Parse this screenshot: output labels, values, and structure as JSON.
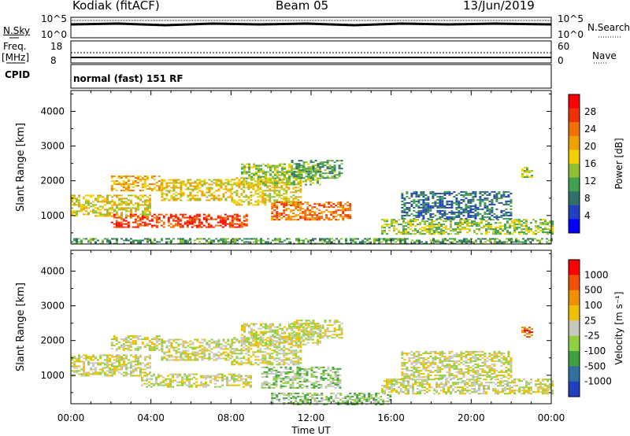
{
  "header": {
    "station": "Kodiak (fitACF)",
    "beam": "Beam 05",
    "date": "13/Jun/2019"
  },
  "status_panels": {
    "nsky": {
      "label": "N.Sky",
      "top_tick": "10^5",
      "bottom_tick": "10^0"
    },
    "nsearch": {
      "label": "N.Search",
      "top_tick": "10^5",
      "bottom_tick": "10^0"
    },
    "freq": {
      "label_top": "Freq.",
      "label_bottom": "[MHz]",
      "top_tick": "18",
      "bottom_tick": "8"
    },
    "nave": {
      "label": "Nave",
      "top_tick": "60",
      "bottom_tick": "0"
    },
    "cpid": {
      "label": "CPID",
      "value": "normal (fast) 151 RF"
    }
  },
  "chart_data": [
    {
      "type": "heatmap",
      "name": "power",
      "ylabel": "Slant Range [km]",
      "ylim": [
        180,
        4600
      ],
      "yticks": [
        "4000",
        "3000",
        "2000",
        "1000"
      ],
      "xlabel": "Time UT",
      "xlim": [
        0,
        24
      ],
      "xticks": [
        "00:00",
        "04:00",
        "08:00",
        "12:00",
        "16:00",
        "20:00",
        "00:00"
      ],
      "colorbar_label": "Power [dB]",
      "colorbar_ticks": [
        "28",
        "24",
        "20",
        "16",
        "12",
        "8",
        "4"
      ],
      "colors": [
        "#0000ff",
        "#2040c0",
        "#30706a",
        "#40a050",
        "#90c030",
        "#f0d000",
        "#f0a000",
        "#f07000",
        "#f03000",
        "#ff0000"
      ],
      "regions": [
        {
          "t0": 2.0,
          "t1": 8.8,
          "r0": 650,
          "r1": 1050,
          "level": 8
        },
        {
          "t0": 0.0,
          "t1": 4.0,
          "r0": 1000,
          "r1": 1600,
          "level": 5
        },
        {
          "t0": 2.0,
          "t1": 4.5,
          "r0": 1700,
          "r1": 2150,
          "level": 6
        },
        {
          "t0": 4.5,
          "t1": 8.0,
          "r0": 1450,
          "r1": 2050,
          "level": 5
        },
        {
          "t0": 8.0,
          "t1": 11.5,
          "r0": 1300,
          "r1": 2100,
          "level": 5
        },
        {
          "t0": 8.5,
          "t1": 12.5,
          "r0": 1900,
          "r1": 2500,
          "level": 4
        },
        {
          "t0": 10.0,
          "t1": 14.0,
          "r0": 900,
          "r1": 1400,
          "level": 7
        },
        {
          "t0": 11.0,
          "t1": 13.5,
          "r0": 2100,
          "r1": 2600,
          "level": 3
        },
        {
          "t0": 15.5,
          "t1": 24.0,
          "r0": 450,
          "r1": 900,
          "level": 4
        },
        {
          "t0": 16.5,
          "t1": 22.0,
          "r0": 900,
          "r1": 1700,
          "level": 2
        },
        {
          "t0": 22.5,
          "t1": 23.0,
          "r0": 2100,
          "r1": 2400,
          "level": 4
        },
        {
          "t0": 0.0,
          "t1": 24.0,
          "r0": 180,
          "r1": 350,
          "level": 3
        }
      ]
    },
    {
      "type": "heatmap",
      "name": "velocity",
      "ylabel": "Slant Range [km]",
      "ylim": [
        180,
        4600
      ],
      "yticks": [
        "4000",
        "3000",
        "2000",
        "1000"
      ],
      "xlabel": "Time UT",
      "xlim": [
        0,
        24
      ],
      "xticks": [
        "00:00",
        "04:00",
        "08:00",
        "12:00",
        "16:00",
        "20:00",
        "00:00"
      ],
      "colorbar_label": "Velocity [m s⁻¹]",
      "colorbar_ticks": [
        "1000",
        "500",
        "100",
        "25",
        "-25",
        "-100",
        "-500",
        "-1000"
      ],
      "colors": [
        "#2040c0",
        "#3070a0",
        "#40a040",
        "#90d040",
        "#c8c8c0",
        "#f0c000",
        "#f09000",
        "#f05000",
        "#ff0000"
      ],
      "regions": [
        {
          "t0": 3.5,
          "t1": 9.0,
          "r0": 650,
          "r1": 1050,
          "level": 4
        },
        {
          "t0": 0.0,
          "t1": 4.0,
          "r0": 1000,
          "r1": 1600,
          "level": 4
        },
        {
          "t0": 2.0,
          "t1": 4.5,
          "r0": 1700,
          "r1": 2150,
          "level": 4
        },
        {
          "t0": 4.5,
          "t1": 8.0,
          "r0": 1450,
          "r1": 2050,
          "level": 4
        },
        {
          "t0": 8.0,
          "t1": 11.5,
          "r0": 1300,
          "r1": 2100,
          "level": 4
        },
        {
          "t0": 8.5,
          "t1": 12.5,
          "r0": 1900,
          "r1": 2500,
          "level": 4
        },
        {
          "t0": 9.5,
          "t1": 13.5,
          "r0": 650,
          "r1": 1250,
          "level": 3
        },
        {
          "t0": 11.0,
          "t1": 13.5,
          "r0": 2100,
          "r1": 2600,
          "level": 4
        },
        {
          "t0": 15.5,
          "t1": 24.0,
          "r0": 450,
          "r1": 900,
          "level": 4
        },
        {
          "t0": 16.5,
          "t1": 22.0,
          "r0": 900,
          "r1": 1700,
          "level": 4
        },
        {
          "t0": 22.5,
          "t1": 23.0,
          "r0": 2100,
          "r1": 2400,
          "level": 7
        },
        {
          "t0": 10.0,
          "t1": 16.0,
          "r0": 180,
          "r1": 500,
          "level": 3
        }
      ]
    }
  ]
}
